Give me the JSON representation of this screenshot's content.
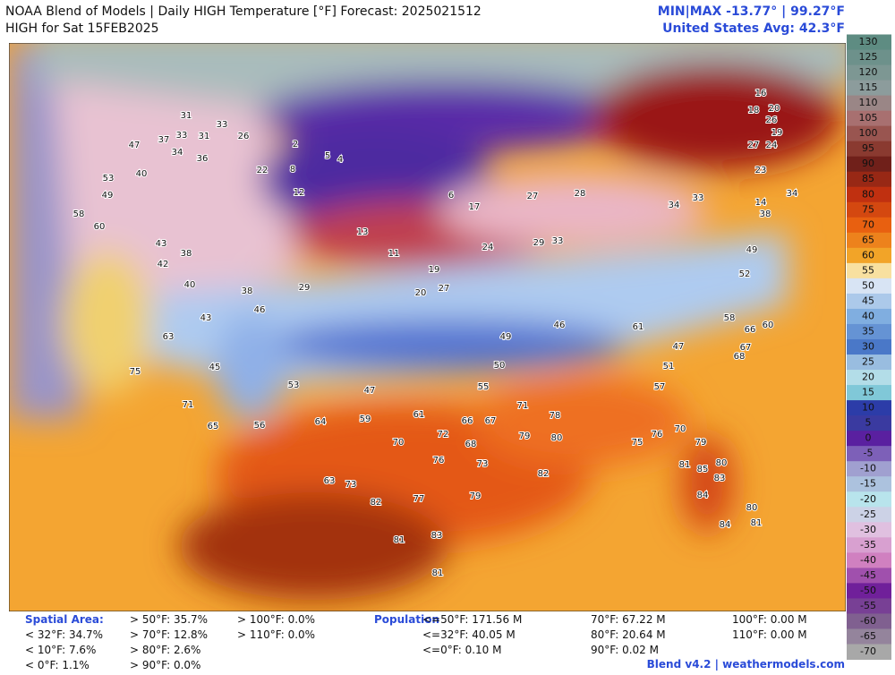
{
  "header": {
    "title": "NOAA Blend of Models | Daily HIGH Temperature [°F] Forecast: 2025021512",
    "subtitle": "HIGH for Sat 15FEB2025",
    "minmax": "MIN|MAX -13.77°  |  99.27°F",
    "average": "United States Avg: 42.3°F"
  },
  "colorbar": {
    "ticks": [
      130,
      125,
      120,
      115,
      110,
      105,
      100,
      95,
      90,
      85,
      80,
      75,
      70,
      65,
      60,
      55,
      50,
      45,
      40,
      35,
      30,
      25,
      20,
      15,
      10,
      5,
      0,
      -5,
      -10,
      -15,
      -20,
      -25,
      -30,
      -35,
      -40,
      -45,
      -50,
      -55,
      -60,
      -65,
      -70
    ]
  },
  "stations": [
    31,
    33,
    37,
    33,
    31,
    26,
    47,
    40,
    34,
    36,
    2,
    5,
    4,
    8,
    22,
    12,
    6,
    17,
    53,
    49,
    58,
    60,
    43,
    38,
    42,
    40,
    38,
    43,
    46,
    29,
    13,
    11,
    19,
    20,
    27,
    24,
    29,
    33,
    27,
    28,
    34,
    33,
    46,
    49,
    50,
    55,
    47,
    53,
    45,
    63,
    75,
    71,
    65,
    56,
    64,
    59,
    61,
    66,
    67,
    70,
    72,
    68,
    76,
    73,
    79,
    80,
    78,
    71,
    82,
    77,
    82,
    81,
    83,
    81,
    63,
    73,
    79,
    75,
    76,
    70,
    80,
    79,
    81,
    85,
    83,
    84,
    84,
    81,
    80,
    61,
    57,
    51,
    47,
    58,
    60,
    66,
    67,
    68,
    52,
    49,
    34,
    38,
    14,
    16,
    18,
    20,
    26,
    24,
    19,
    27,
    23
  ],
  "footer": {
    "spatial_label": "Spatial Area:",
    "spatial": [
      "< 32°F: 34.7%",
      "< 10°F: 7.6%",
      "< 0°F: 1.1%",
      "> 50°F: 35.7%",
      "> 70°F: 12.8%",
      "> 80°F: 2.6%",
      "> 90°F: 0.0%",
      "> 100°F: 0.0%",
      "> 110°F: 0.0%"
    ],
    "population_label": "Population",
    "population": [
      "<=50°F: 171.56 M",
      "<=32°F: 40.05 M",
      "<=0°F: 0.10 M",
      "70°F: 67.22 M",
      "80°F: 20.64 M",
      "90°F: 0.02 M",
      "100°F: 0.00 M",
      "110°F: 0.00 M"
    ],
    "credit": "Blend v4.2 | weathermodels.com"
  }
}
